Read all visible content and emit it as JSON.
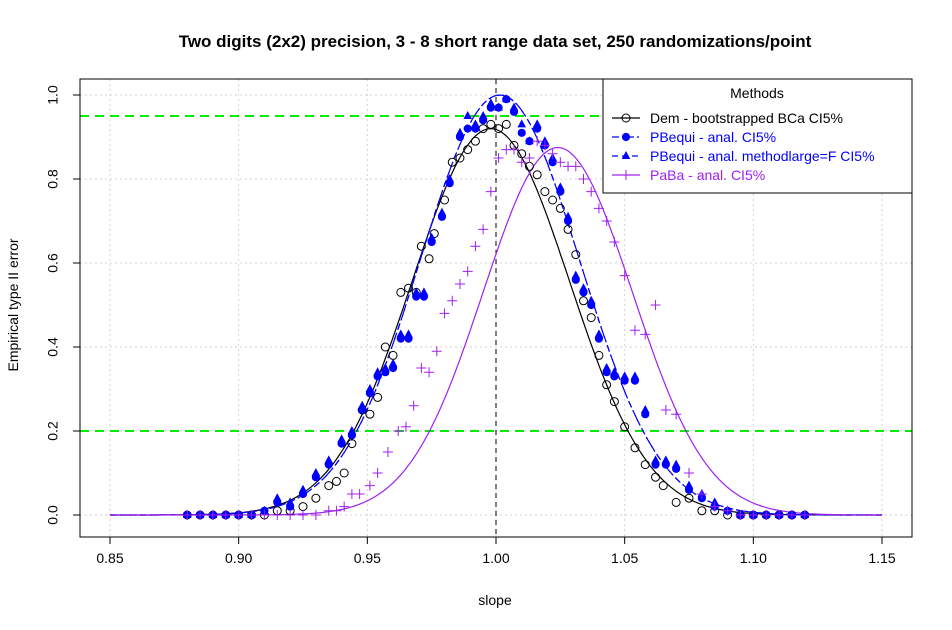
{
  "chart_data": {
    "type": "scatter",
    "title": "Two digits (2x2) precision, 3 - 8 short range data set, 250 randomizations/point",
    "xlabel": "slope",
    "ylabel": "Empirical type II error",
    "xlim": [
      0.85,
      1.15
    ],
    "ylim": [
      0.0,
      1.0
    ],
    "x_ticks": [
      "0.85",
      "0.90",
      "0.95",
      "1.00",
      "1.05",
      "1.10",
      "1.15"
    ],
    "y_ticks": [
      "0.0",
      "0.2",
      "0.4",
      "0.6",
      "0.8",
      "1.0"
    ],
    "grid": true,
    "reference_lines": {
      "horizontal": [
        0.95,
        0.2
      ],
      "horizontal_color": "#00ee00",
      "vertical": [
        1.0
      ]
    },
    "legend": {
      "title": "Methods",
      "position": "top-right",
      "entries": [
        {
          "label": "Dem - bootstrapped BCa CI5%",
          "color": "#000000",
          "marker": "open-circle",
          "line": "solid"
        },
        {
          "label": "PBequi - anal. CI5%",
          "color": "#0000ff",
          "marker": "filled-circle",
          "line": "dash-dot"
        },
        {
          "label": "PBequi - anal. methodlarge=F CI5%",
          "color": "#0000ff",
          "marker": "filled-triangle",
          "line": "dashed"
        },
        {
          "label": "PaBa - anal. CI5%",
          "color": "#a020f0",
          "marker": "plus",
          "line": "solid"
        }
      ]
    },
    "series": [
      {
        "name": "Dem - bootstrapped BCa CI5%",
        "color": "#000000",
        "marker": "open-circle",
        "points": [
          [
            0.88,
            0.0
          ],
          [
            0.885,
            0.0
          ],
          [
            0.89,
            0.0
          ],
          [
            0.895,
            0.0
          ],
          [
            0.9,
            0.0
          ],
          [
            0.905,
            0.0
          ],
          [
            0.91,
            0.0
          ],
          [
            0.915,
            0.01
          ],
          [
            0.92,
            0.01
          ],
          [
            0.925,
            0.02
          ],
          [
            0.93,
            0.04
          ],
          [
            0.935,
            0.07
          ],
          [
            0.938,
            0.08
          ],
          [
            0.941,
            0.1
          ],
          [
            0.944,
            0.17
          ],
          [
            0.948,
            0.25
          ],
          [
            0.951,
            0.24
          ],
          [
            0.954,
            0.28
          ],
          [
            0.957,
            0.4
          ],
          [
            0.96,
            0.38
          ],
          [
            0.963,
            0.53
          ],
          [
            0.966,
            0.54
          ],
          [
            0.969,
            0.53
          ],
          [
            0.971,
            0.64
          ],
          [
            0.974,
            0.61
          ],
          [
            0.976,
            0.67
          ],
          [
            0.98,
            0.75
          ],
          [
            0.983,
            0.84
          ],
          [
            0.986,
            0.85
          ],
          [
            0.989,
            0.87
          ],
          [
            0.992,
            0.89
          ],
          [
            0.995,
            0.92
          ],
          [
            0.998,
            0.93
          ],
          [
            1.001,
            0.92
          ],
          [
            1.004,
            0.93
          ],
          [
            1.007,
            0.88
          ],
          [
            1.01,
            0.86
          ],
          [
            1.013,
            0.83
          ],
          [
            1.016,
            0.81
          ],
          [
            1.019,
            0.77
          ],
          [
            1.022,
            0.75
          ],
          [
            1.025,
            0.73
          ],
          [
            1.028,
            0.68
          ],
          [
            1.031,
            0.62
          ],
          [
            1.034,
            0.51
          ],
          [
            1.037,
            0.47
          ],
          [
            1.04,
            0.38
          ],
          [
            1.043,
            0.31
          ],
          [
            1.046,
            0.27
          ],
          [
            1.05,
            0.21
          ],
          [
            1.054,
            0.16
          ],
          [
            1.058,
            0.12
          ],
          [
            1.062,
            0.09
          ],
          [
            1.065,
            0.07
          ],
          [
            1.07,
            0.03
          ],
          [
            1.075,
            0.04
          ],
          [
            1.08,
            0.01
          ],
          [
            1.085,
            0.01
          ],
          [
            1.09,
            0.0
          ],
          [
            1.095,
            0.0
          ],
          [
            1.1,
            0.0
          ],
          [
            1.105,
            0.0
          ],
          [
            1.11,
            0.0
          ],
          [
            1.115,
            0.0
          ],
          [
            1.12,
            0.0
          ]
        ],
        "fit_mean": 0.998,
        "fit_sd": 0.0305,
        "fit_peak": 0.92
      },
      {
        "name": "PBequi - anal. CI5%",
        "color": "#0000ff",
        "marker": "filled-circle",
        "points": [
          [
            0.88,
            0.0
          ],
          [
            0.885,
            0.0
          ],
          [
            0.89,
            0.0
          ],
          [
            0.895,
            0.0
          ],
          [
            0.9,
            0.0
          ],
          [
            0.905,
            0.0
          ],
          [
            0.91,
            0.01
          ],
          [
            0.915,
            0.03
          ],
          [
            0.92,
            0.02
          ],
          [
            0.925,
            0.05
          ],
          [
            0.93,
            0.09
          ],
          [
            0.935,
            0.12
          ],
          [
            0.94,
            0.17
          ],
          [
            0.944,
            0.19
          ],
          [
            0.948,
            0.25
          ],
          [
            0.951,
            0.29
          ],
          [
            0.954,
            0.33
          ],
          [
            0.957,
            0.34
          ],
          [
            0.96,
            0.35
          ],
          [
            0.963,
            0.42
          ],
          [
            0.966,
            0.42
          ],
          [
            0.969,
            0.52
          ],
          [
            0.972,
            0.52
          ],
          [
            0.975,
            0.65
          ],
          [
            0.979,
            0.71
          ],
          [
            0.982,
            0.79
          ],
          [
            0.986,
            0.9
          ],
          [
            0.989,
            0.92
          ],
          [
            0.992,
            0.92
          ],
          [
            0.995,
            0.94
          ],
          [
            0.998,
            0.97
          ],
          [
            1.001,
            0.97
          ],
          [
            1.004,
            0.99
          ],
          [
            1.007,
            0.96
          ],
          [
            1.01,
            0.91
          ],
          [
            1.013,
            0.89
          ],
          [
            1.016,
            0.92
          ],
          [
            1.019,
            0.88
          ],
          [
            1.022,
            0.84
          ],
          [
            1.025,
            0.77
          ],
          [
            1.028,
            0.7
          ],
          [
            1.031,
            0.56
          ],
          [
            1.034,
            0.53
          ],
          [
            1.037,
            0.5
          ],
          [
            1.04,
            0.42
          ],
          [
            1.043,
            0.34
          ],
          [
            1.046,
            0.33
          ],
          [
            1.05,
            0.32
          ],
          [
            1.054,
            0.32
          ],
          [
            1.058,
            0.24
          ],
          [
            1.062,
            0.12
          ],
          [
            1.066,
            0.12
          ],
          [
            1.07,
            0.11
          ],
          [
            1.075,
            0.06
          ],
          [
            1.08,
            0.04
          ],
          [
            1.085,
            0.02
          ],
          [
            1.09,
            0.01
          ],
          [
            1.095,
            0.0
          ],
          [
            1.1,
            0.0
          ],
          [
            1.105,
            0.0
          ],
          [
            1.11,
            0.0
          ],
          [
            1.115,
            0.0
          ],
          [
            1.12,
            0.0
          ]
        ],
        "fit_mean": 1.0015,
        "fit_sd": 0.031,
        "fit_peak": 1.0
      },
      {
        "name": "PBequi - anal. methodlarge=F CI5%",
        "color": "#0000ff",
        "marker": "filled-triangle",
        "points": [
          [
            0.88,
            0.0
          ],
          [
            0.885,
            0.0
          ],
          [
            0.89,
            0.0
          ],
          [
            0.895,
            0.0
          ],
          [
            0.9,
            0.0
          ],
          [
            0.905,
            0.0
          ],
          [
            0.91,
            0.01
          ],
          [
            0.915,
            0.04
          ],
          [
            0.92,
            0.03
          ],
          [
            0.925,
            0.06
          ],
          [
            0.93,
            0.1
          ],
          [
            0.935,
            0.13
          ],
          [
            0.94,
            0.18
          ],
          [
            0.944,
            0.2
          ],
          [
            0.948,
            0.26
          ],
          [
            0.951,
            0.3
          ],
          [
            0.954,
            0.34
          ],
          [
            0.957,
            0.35
          ],
          [
            0.96,
            0.36
          ],
          [
            0.963,
            0.43
          ],
          [
            0.966,
            0.43
          ],
          [
            0.969,
            0.53
          ],
          [
            0.972,
            0.53
          ],
          [
            0.975,
            0.66
          ],
          [
            0.979,
            0.72
          ],
          [
            0.982,
            0.8
          ],
          [
            0.986,
            0.91
          ],
          [
            0.989,
            0.95
          ],
          [
            0.992,
            0.93
          ],
          [
            0.995,
            0.95
          ],
          [
            0.998,
            0.98
          ],
          [
            1.001,
            0.97
          ],
          [
            1.004,
            0.99
          ],
          [
            1.007,
            0.97
          ],
          [
            1.01,
            0.93
          ],
          [
            1.013,
            0.89
          ],
          [
            1.016,
            0.93
          ],
          [
            1.019,
            0.89
          ],
          [
            1.022,
            0.85
          ],
          [
            1.025,
            0.78
          ],
          [
            1.028,
            0.71
          ],
          [
            1.031,
            0.57
          ],
          [
            1.034,
            0.54
          ],
          [
            1.037,
            0.51
          ],
          [
            1.04,
            0.43
          ],
          [
            1.043,
            0.35
          ],
          [
            1.046,
            0.34
          ],
          [
            1.05,
            0.33
          ],
          [
            1.054,
            0.33
          ],
          [
            1.058,
            0.25
          ],
          [
            1.062,
            0.13
          ],
          [
            1.066,
            0.13
          ],
          [
            1.07,
            0.12
          ],
          [
            1.075,
            0.07
          ],
          [
            1.08,
            0.05
          ],
          [
            1.085,
            0.03
          ],
          [
            1.09,
            0.01
          ],
          [
            1.095,
            0.0
          ],
          [
            1.1,
            0.0
          ],
          [
            1.105,
            0.0
          ],
          [
            1.11,
            0.0
          ],
          [
            1.115,
            0.0
          ],
          [
            1.12,
            0.0
          ]
        ],
        "fit_mean": 1.0015,
        "fit_sd": 0.031,
        "fit_peak": 1.0
      },
      {
        "name": "PaBa - anal. CI5%",
        "color": "#a020f0",
        "marker": "plus",
        "points": [
          [
            0.88,
            0.0
          ],
          [
            0.885,
            0.0
          ],
          [
            0.89,
            0.0
          ],
          [
            0.895,
            0.0
          ],
          [
            0.9,
            0.0
          ],
          [
            0.905,
            0.0
          ],
          [
            0.91,
            0.0
          ],
          [
            0.915,
            0.0
          ],
          [
            0.92,
            0.0
          ],
          [
            0.925,
            0.0
          ],
          [
            0.93,
            0.0
          ],
          [
            0.935,
            0.01
          ],
          [
            0.938,
            0.01
          ],
          [
            0.941,
            0.02
          ],
          [
            0.944,
            0.05
          ],
          [
            0.947,
            0.05
          ],
          [
            0.951,
            0.07
          ],
          [
            0.954,
            0.1
          ],
          [
            0.958,
            0.15
          ],
          [
            0.962,
            0.2
          ],
          [
            0.965,
            0.21
          ],
          [
            0.968,
            0.26
          ],
          [
            0.971,
            0.35
          ],
          [
            0.974,
            0.34
          ],
          [
            0.977,
            0.39
          ],
          [
            0.98,
            0.48
          ],
          [
            0.983,
            0.51
          ],
          [
            0.986,
            0.55
          ],
          [
            0.989,
            0.58
          ],
          [
            0.992,
            0.64
          ],
          [
            0.995,
            0.68
          ],
          [
            0.998,
            0.77
          ],
          [
            1.001,
            0.85
          ],
          [
            1.004,
            0.87
          ],
          [
            1.007,
            0.87
          ],
          [
            1.01,
            0.84
          ],
          [
            1.013,
            0.85
          ],
          [
            1.016,
            0.89
          ],
          [
            1.019,
            0.88
          ],
          [
            1.022,
            0.86
          ],
          [
            1.025,
            0.84
          ],
          [
            1.028,
            0.83
          ],
          [
            1.031,
            0.83
          ],
          [
            1.034,
            0.8
          ],
          [
            1.037,
            0.77
          ],
          [
            1.04,
            0.73
          ],
          [
            1.043,
            0.7
          ],
          [
            1.046,
            0.65
          ],
          [
            1.05,
            0.57
          ],
          [
            1.054,
            0.44
          ],
          [
            1.058,
            0.43
          ],
          [
            1.062,
            0.5
          ],
          [
            1.066,
            0.25
          ],
          [
            1.07,
            0.24
          ],
          [
            1.075,
            0.1
          ],
          [
            1.08,
            0.05
          ],
          [
            1.085,
            0.02
          ],
          [
            1.09,
            0.01
          ],
          [
            1.095,
            0.0
          ],
          [
            1.1,
            0.0
          ],
          [
            1.105,
            0.0
          ],
          [
            1.11,
            0.0
          ],
          [
            1.115,
            0.0
          ],
          [
            1.12,
            0.0
          ]
        ],
        "fit_mean": 1.024,
        "fit_sd": 0.029,
        "fit_peak": 0.875
      }
    ]
  }
}
